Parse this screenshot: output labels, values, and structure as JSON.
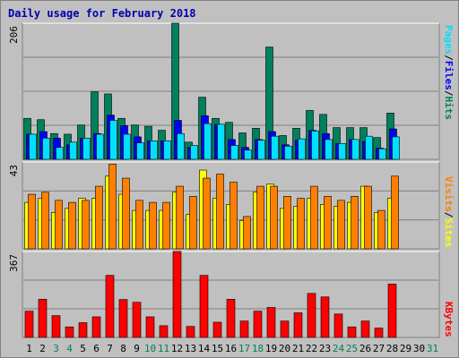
{
  "title": "Daily usage for February 2018",
  "colors": {
    "hits": "#00805c",
    "files": "#0000ff",
    "pages": "#00e0ff",
    "visits": "#ffff00",
    "sites": "#ff8000",
    "kbytes": "#ff0000",
    "background": "#c0c0c0",
    "title": "#0000b0"
  },
  "chart_data": [
    {
      "type": "bar",
      "categories": [
        "1",
        "2",
        "3",
        "4",
        "5",
        "6",
        "7",
        "8",
        "9",
        "10",
        "11",
        "12",
        "13",
        "14",
        "15",
        "16",
        "17",
        "18",
        "19",
        "20",
        "21",
        "22",
        "23",
        "24",
        "25",
        "26",
        "27",
        "28",
        "29",
        "30",
        "31"
      ],
      "weekend_categories": [
        "3",
        "4",
        "10",
        "11",
        "17",
        "18",
        "24",
        "25",
        "31"
      ],
      "ymax_label": "206",
      "ylim": [
        0,
        206
      ],
      "legend": [
        "Pages",
        "/",
        "Files",
        "/",
        "Hits"
      ],
      "series": [
        {
          "name": "Hits",
          "values": [
            62,
            60,
            39,
            38,
            52,
            102,
            99,
            62,
            52,
            50,
            44,
            206,
            26,
            94,
            62,
            56,
            40,
            47,
            170,
            36,
            47,
            74,
            68,
            48,
            48,
            48,
            33,
            70,
            0,
            0,
            0
          ]
        },
        {
          "name": "Files",
          "values": [
            38,
            42,
            32,
            22,
            32,
            39,
            67,
            51,
            34,
            28,
            28,
            59,
            18,
            66,
            53,
            30,
            18,
            30,
            42,
            22,
            29,
            44,
            39,
            24,
            30,
            27,
            17,
            46,
            0,
            0,
            0
          ]
        },
        {
          "name": "Pages",
          "values": [
            38,
            32,
            18,
            26,
            32,
            38,
            59,
            38,
            25,
            28,
            28,
            39,
            21,
            54,
            53,
            21,
            14,
            29,
            35,
            20,
            31,
            43,
            30,
            24,
            30,
            35,
            16,
            34,
            0,
            0,
            0
          ]
        }
      ]
    },
    {
      "type": "bar",
      "categories": [
        "1",
        "2",
        "3",
        "4",
        "5",
        "6",
        "7",
        "8",
        "9",
        "10",
        "11",
        "12",
        "13",
        "14",
        "15",
        "16",
        "17",
        "18",
        "19",
        "20",
        "21",
        "22",
        "23",
        "24",
        "25",
        "26",
        "27",
        "28",
        "29",
        "30",
        "31"
      ],
      "ymax_label": "43",
      "ylim": [
        0,
        43
      ],
      "legend": [
        "Visits",
        "/",
        "Sites"
      ],
      "series": [
        {
          "name": "Visits",
          "values": [
            23,
            25,
            18,
            20,
            25,
            25,
            36,
            27,
            19,
            19,
            19,
            28,
            17,
            39,
            25,
            22,
            14,
            28,
            32,
            20,
            21,
            25,
            22,
            21,
            23,
            31,
            18,
            25,
            0,
            0,
            0
          ]
        },
        {
          "name": "Sites",
          "values": [
            27,
            28,
            24,
            23,
            24,
            31,
            42,
            35,
            24,
            23,
            23,
            31,
            26,
            35,
            37,
            33,
            16,
            31,
            31,
            26,
            25,
            31,
            26,
            24,
            26,
            31,
            19,
            36,
            0,
            0,
            0
          ]
        }
      ]
    },
    {
      "type": "bar",
      "categories": [
        "1",
        "2",
        "3",
        "4",
        "5",
        "6",
        "7",
        "8",
        "9",
        "10",
        "11",
        "12",
        "13",
        "14",
        "15",
        "16",
        "17",
        "18",
        "19",
        "20",
        "21",
        "22",
        "23",
        "24",
        "25",
        "26",
        "27",
        "28",
        "29",
        "30",
        "31"
      ],
      "ymax_label": "367",
      "ylim": [
        0,
        367
      ],
      "legend": [
        "KBytes"
      ],
      "series": [
        {
          "name": "KBytes",
          "values": [
            112,
            163,
            93,
            45,
            63,
            88,
            265,
            162,
            150,
            88,
            50,
            367,
            47,
            265,
            65,
            163,
            70,
            112,
            128,
            70,
            105,
            188,
            173,
            100,
            45,
            70,
            40,
            228,
            0,
            0,
            0
          ]
        }
      ]
    }
  ]
}
